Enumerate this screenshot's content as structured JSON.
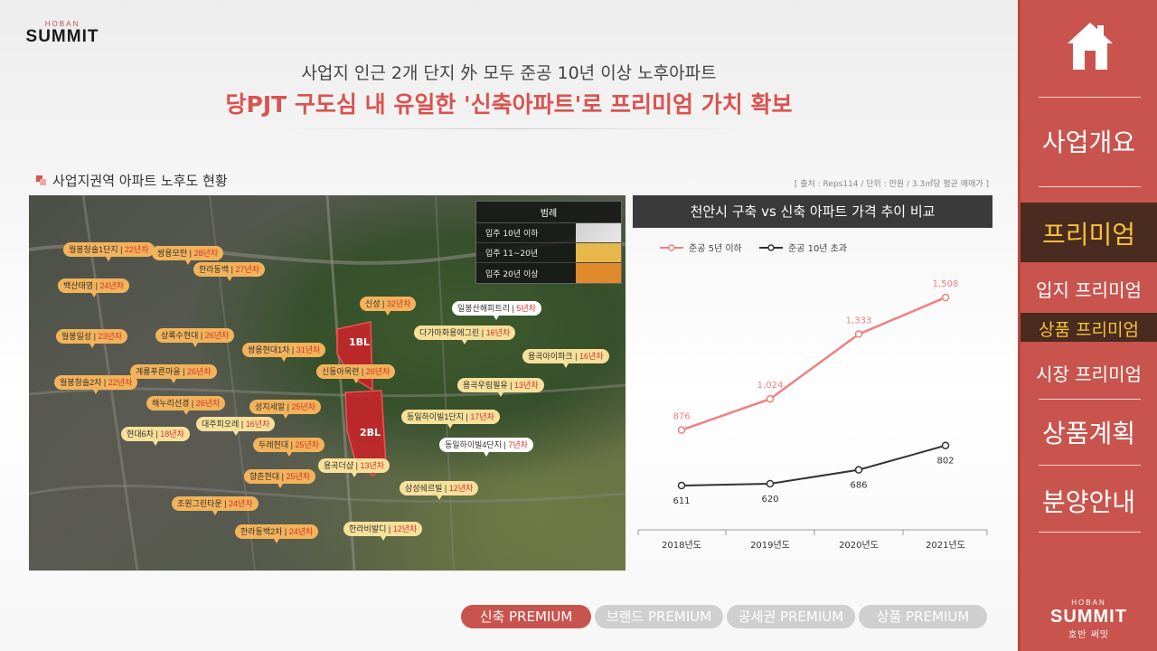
{
  "logo": {
    "small": "HOBAN",
    "big": "SUMMIT"
  },
  "headline": {
    "sub": "사업지 인근 2개 단지 外 모두 준공 10년 이상 노후아파트",
    "main": "당PJT 구도심 내 유일한 '신축아파트'로 프리미엄 가치 확보"
  },
  "section_title": "사업지권역 아파트 노후도 현황",
  "source": "[ 출처 : Reps114 / 단위 : 만원 / 3.3㎡당 평균 매매가 ]",
  "map": {
    "legend": {
      "title": "범례",
      "items": [
        {
          "label": "입주 10년 이하",
          "color": "#d9d9d9"
        },
        {
          "label": "입주 11~20년",
          "color": "#e6b84c"
        },
        {
          "label": "입주 20년 이상",
          "color": "#e08a2c"
        }
      ]
    },
    "blocks": [
      "1BL",
      "2BL"
    ],
    "tags": [
      {
        "name": "월봉청솔1단지",
        "age": "22년차",
        "style": "o"
      },
      {
        "name": "쌍용모란",
        "age": "28년차",
        "style": "o"
      },
      {
        "name": "한라동백",
        "age": "27년차",
        "style": "o"
      },
      {
        "name": "백산태영",
        "age": "24년차",
        "style": "o"
      },
      {
        "name": "월봉일성",
        "age": "23년차",
        "style": "o"
      },
      {
        "name": "상록수현대",
        "age": "26년차",
        "style": "o"
      },
      {
        "name": "쌍용현대1차",
        "age": "31년차",
        "style": "o"
      },
      {
        "name": "계룡푸른마을",
        "age": "26년차",
        "style": "o"
      },
      {
        "name": "월봉청솔2차",
        "age": "22년차",
        "style": "o"
      },
      {
        "name": "해누리선경",
        "age": "26년차",
        "style": "o"
      },
      {
        "name": "성지세말",
        "age": "25년차",
        "style": "o"
      },
      {
        "name": "대주피오레",
        "age": "16년차",
        "style": "y"
      },
      {
        "name": "현대6차",
        "age": "18년차",
        "style": "y"
      },
      {
        "name": "두레현대",
        "age": "25년차",
        "style": "o"
      },
      {
        "name": "향촌현대",
        "age": "25년차",
        "style": "o"
      },
      {
        "name": "초원그린타운",
        "age": "24년차",
        "style": "o"
      },
      {
        "name": "한라동백2차",
        "age": "24년차",
        "style": "o"
      },
      {
        "name": "한라비발디",
        "age": "12년차",
        "style": "y"
      },
      {
        "name": "신성",
        "age": "32년차",
        "style": "o"
      },
      {
        "name": "일봉산해피트리",
        "age": "5년차",
        "style": "w"
      },
      {
        "name": "다가마화용에그린",
        "age": "16년차",
        "style": "y"
      },
      {
        "name": "용곡아이파크",
        "age": "16년차",
        "style": "y"
      },
      {
        "name": "신동아목련",
        "age": "26년차",
        "style": "o"
      },
      {
        "name": "용곡우림필유",
        "age": "13년차",
        "style": "y"
      },
      {
        "name": "동일하이빌1단지",
        "age": "17년차",
        "style": "y"
      },
      {
        "name": "동일하이빌4단지",
        "age": "7년차",
        "style": "w"
      },
      {
        "name": "용곡더샵",
        "age": "13년차",
        "style": "y"
      },
      {
        "name": "삼성쉐르빌",
        "age": "12년차",
        "style": "y"
      }
    ]
  },
  "chart_title": "천안시 구축 vs 신축 아파트 가격 추이 비교",
  "chart_data": {
    "type": "line",
    "categories": [
      "2018년도",
      "2019년도",
      "2020년도",
      "2021년도"
    ],
    "series": [
      {
        "name": "준공 5년 이하",
        "color": "#f08080",
        "values": [
          876,
          1024,
          1333,
          1508
        ],
        "labels": [
          "876",
          "1,024",
          "1,333",
          "1,508"
        ]
      },
      {
        "name": "준공 10년 초과",
        "color": "#333333",
        "values": [
          611,
          620,
          686,
          802
        ],
        "labels": [
          "611",
          "620",
          "686",
          "802"
        ]
      }
    ],
    "ylim": [
      400,
      1650
    ],
    "grid": false,
    "legend": "top-left"
  },
  "tabs": [
    {
      "label": "신축 PREMIUM",
      "active": true
    },
    {
      "label": "브랜드 PREMIUM",
      "active": false
    },
    {
      "label": "공세권 PREMIUM",
      "active": false
    },
    {
      "label": "상품 PREMIUM",
      "active": false
    }
  ],
  "sidebar": {
    "items": [
      "사업개요",
      "프리미엄",
      "입지 프리미엄",
      "상품 프리미엄",
      "시장 프리미엄",
      "상품계획",
      "분양안내"
    ],
    "logo_small": "HOBAN",
    "logo_big": "SUMMIT",
    "logo_kr": "호반 써밋"
  }
}
